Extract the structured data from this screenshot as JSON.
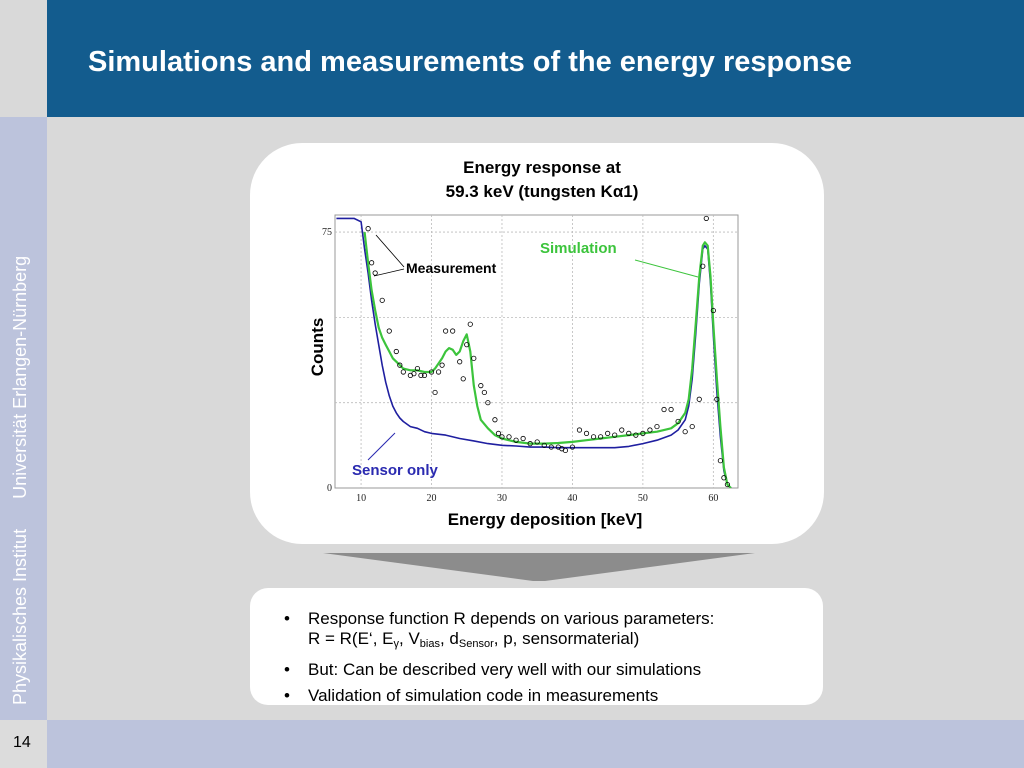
{
  "slide": {
    "title": "Simulations and measurements of the energy response",
    "sidebar_institute": "Physikalisches Institut",
    "sidebar_university": "Universität Erlangen-Nürnberg",
    "page_number": "14"
  },
  "chart_data": {
    "type": "line",
    "title_line1": "Energy response at",
    "title_line2": "59.3 keV (tungsten Kα1)",
    "xlabel": "Energy deposition [keV]",
    "ylabel": "Counts",
    "xlim": [
      6.3,
      63.5
    ],
    "ylim": [
      0,
      80
    ],
    "x_ticks": [
      "10",
      "20",
      "30",
      "40",
      "50",
      "60"
    ],
    "y_ticks": [
      "0",
      "75"
    ],
    "annotations": [
      "Simulation",
      "Measurement",
      "Sensor only"
    ],
    "series": [
      {
        "name": "Sensor only",
        "color": "#1f1fa0",
        "x": [
          6.5,
          8,
          9,
          10,
          10.5,
          11,
          11.5,
          12,
          12.5,
          13,
          13.5,
          14,
          14.5,
          15,
          15.5,
          16,
          17,
          18,
          19,
          20,
          22,
          24,
          26,
          28,
          30,
          32,
          34,
          36,
          38,
          40,
          42,
          44,
          46,
          48,
          50,
          52,
          54,
          55,
          56,
          56.5,
          57,
          57.5,
          58,
          58.5,
          58.8,
          59.2,
          59.6,
          60,
          60.5,
          61,
          61.5,
          62,
          62.5
        ],
        "y": [
          79,
          79,
          79,
          78,
          70,
          63,
          55,
          48,
          42,
          36,
          31,
          27,
          24,
          22,
          20.5,
          19.5,
          18,
          17.5,
          16.5,
          16,
          15.5,
          14.5,
          13.8,
          13,
          12.5,
          12.3,
          12,
          12,
          11.8,
          11.8,
          11.8,
          11.8,
          11.8,
          12.2,
          13,
          14,
          15.5,
          17,
          20,
          24,
          32,
          45,
          60,
          70,
          71,
          70,
          60,
          45,
          28,
          15,
          5,
          1,
          0
        ]
      },
      {
        "name": "Simulation",
        "color": "#3cc43c",
        "x": [
          10.5,
          11,
          11.5,
          12,
          12.5,
          13,
          13.5,
          14,
          14.5,
          15,
          15.5,
          16,
          17,
          18,
          19,
          20,
          20.5,
          21,
          21.5,
          22,
          22.5,
          23,
          23.5,
          24,
          24.5,
          25,
          25.5,
          26,
          26.5,
          27,
          28,
          29,
          30,
          32,
          34,
          36,
          38,
          40,
          42,
          44,
          46,
          48,
          50,
          52,
          54,
          55,
          56,
          56.5,
          57,
          57.5,
          58,
          58.5,
          58.8,
          59.2,
          59.6,
          60,
          60.5,
          61,
          61.5,
          62,
          62.5
        ],
        "y": [
          75,
          66,
          58,
          52,
          47,
          44,
          42,
          40,
          38,
          37,
          36,
          35,
          34.5,
          34.5,
          34,
          34,
          35,
          36.5,
          38,
          40,
          41,
          40.5,
          39,
          40,
          43,
          45,
          40,
          30,
          24,
          20,
          17.5,
          15.5,
          14.5,
          13.5,
          13,
          13,
          13.2,
          13.5,
          14,
          14.5,
          15,
          15.5,
          16,
          16.5,
          17.5,
          19,
          22,
          26,
          35,
          48,
          62,
          71,
          72,
          71,
          62,
          48,
          32,
          18,
          6,
          1,
          0
        ]
      },
      {
        "name": "Measurement",
        "color": "#000000",
        "x": [
          11,
          11.5,
          12,
          13,
          14,
          15,
          15.5,
          16,
          17,
          17.5,
          18,
          18.5,
          19,
          20,
          20.5,
          21,
          21.5,
          22,
          23,
          24,
          24.5,
          25,
          25.5,
          26,
          27,
          27.5,
          28,
          29,
          29.5,
          30,
          31,
          32,
          33,
          34,
          35,
          36,
          37,
          38,
          38.5,
          39,
          40,
          41,
          42,
          43,
          44,
          45,
          46,
          47,
          48,
          49,
          50,
          51,
          52,
          53,
          54,
          55,
          56,
          57,
          58,
          58.5,
          59,
          60,
          60.5,
          61,
          61.5,
          62
        ],
        "y": [
          76,
          66,
          63,
          55,
          46,
          40,
          36,
          34,
          33,
          33.5,
          35,
          33,
          33,
          34,
          28,
          34,
          36,
          46,
          46,
          37,
          32,
          42,
          48,
          38,
          30,
          28,
          25,
          20,
          16,
          15,
          15,
          14,
          14.5,
          13,
          13.5,
          12.5,
          12,
          12,
          11.5,
          11,
          12,
          17,
          16,
          15,
          15,
          16,
          15.5,
          17,
          16,
          15.5,
          16,
          17,
          18,
          23,
          23,
          19.5,
          16.5,
          18,
          26,
          65,
          79,
          52,
          26,
          8,
          3,
          1
        ]
      }
    ]
  },
  "bullets": [
    {
      "text": "Response function R depends on various parameters:",
      "line2_pre": "R = R(E‘, E",
      "sub1": "γ",
      "mid1": ", V",
      "sub2": "bias",
      "mid2": ", d",
      "sub3": "Sensor",
      "post": ", p, sensormaterial)"
    },
    {
      "text": "But: Can be described very well with our simulations"
    },
    {
      "text": "Validation of simulation code in measurements"
    }
  ]
}
